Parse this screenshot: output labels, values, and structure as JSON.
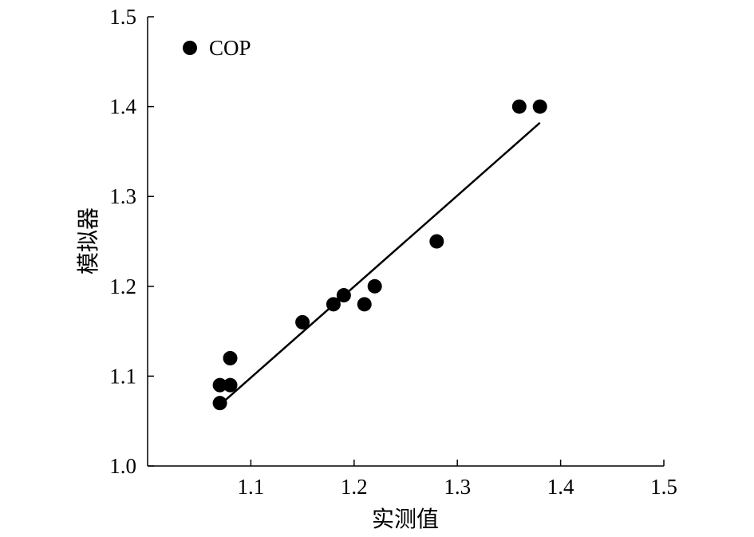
{
  "chart_data": {
    "type": "scatter",
    "title": "",
    "xlabel": "实测值",
    "ylabel": "模拟器",
    "xlim": [
      1.0,
      1.5
    ],
    "ylim": [
      1.0,
      1.5
    ],
    "x_ticks": [
      "1.1",
      "1.2",
      "1.3",
      "1.4",
      "1.5"
    ],
    "y_ticks": [
      "1.0",
      "1.1",
      "1.2",
      "1.3",
      "1.4",
      "1.5"
    ],
    "grid": false,
    "legend": {
      "position": "top-left",
      "entries": [
        "COP"
      ]
    },
    "series": [
      {
        "name": "COP",
        "marker": "circle",
        "color": "#000000",
        "points": [
          {
            "x": 1.07,
            "y": 1.09
          },
          {
            "x": 1.07,
            "y": 1.07
          },
          {
            "x": 1.08,
            "y": 1.12
          },
          {
            "x": 1.08,
            "y": 1.09
          },
          {
            "x": 1.15,
            "y": 1.16
          },
          {
            "x": 1.18,
            "y": 1.18
          },
          {
            "x": 1.19,
            "y": 1.19
          },
          {
            "x": 1.21,
            "y": 1.18
          },
          {
            "x": 1.22,
            "y": 1.2
          },
          {
            "x": 1.28,
            "y": 1.25
          },
          {
            "x": 1.36,
            "y": 1.4
          },
          {
            "x": 1.38,
            "y": 1.4
          }
        ]
      }
    ],
    "fit_line": {
      "x": [
        1.075,
        1.38
      ],
      "y": [
        1.073,
        1.382
      ],
      "color": "#000000"
    }
  }
}
